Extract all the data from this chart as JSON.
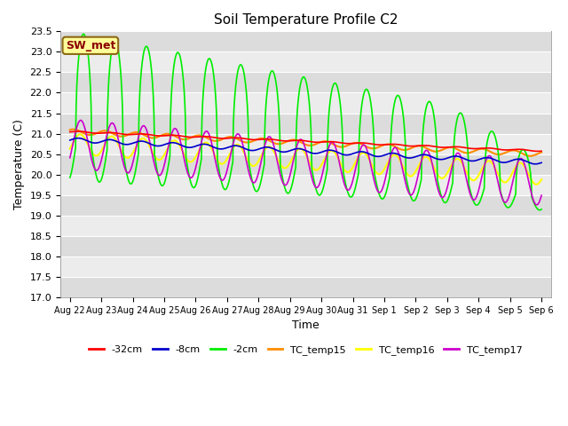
{
  "title": "Soil Temperature Profile C2",
  "xlabel": "Time",
  "ylabel": "Temperature (C)",
  "ylim": [
    17.0,
    23.5
  ],
  "yticks": [
    17.0,
    17.5,
    18.0,
    18.5,
    19.0,
    19.5,
    20.0,
    20.5,
    21.0,
    21.5,
    22.0,
    22.5,
    23.0,
    23.5
  ],
  "x_labels": [
    "Aug 22",
    "Aug 23",
    "Aug 24",
    "Aug 25",
    "Aug 26",
    "Aug 27",
    "Aug 28",
    "Aug 29",
    "Aug 30",
    "Aug 31",
    "Sep 1",
    "Sep 2",
    "Sep 3",
    "Sep 4",
    "Sep 5",
    "Sep 6"
  ],
  "annotation_text": "SW_met",
  "annotation_bg": "#FFFF99",
  "annotation_border": "#8B6914",
  "annotation_text_color": "#8B0000",
  "line_minus32cm_color": "#FF0000",
  "line_minus32cm_label": "-32cm",
  "line_minus8cm_color": "#0000CC",
  "line_minus8cm_label": "-8cm",
  "line_minus2cm_color": "#00EE00",
  "line_minus2cm_label": "-2cm",
  "line_tc15_color": "#FF8C00",
  "line_tc15_label": "TC_temp15",
  "line_tc16_color": "#FFFF00",
  "line_tc16_label": "TC_temp16",
  "line_tc17_color": "#CC00CC",
  "line_tc17_label": "TC_temp17",
  "bg_color": "#E0E0E0",
  "fig_bg": "#FFFFFF",
  "n_points": 1500,
  "days": 15
}
